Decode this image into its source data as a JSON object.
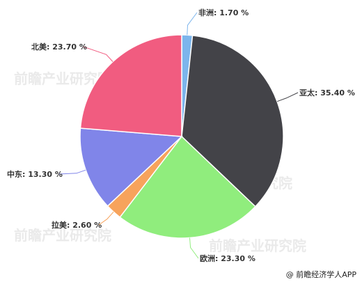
{
  "chart_data": {
    "type": "pie",
    "slices": [
      {
        "label": "非洲",
        "value": 1.7,
        "display": "非洲: 1.70 %",
        "color": "#7cb5ec"
      },
      {
        "label": "亚太",
        "value": 35.4,
        "display": "亚太: 35.40 %",
        "color": "#434348"
      },
      {
        "label": "欧洲",
        "value": 23.3,
        "display": "欧洲: 23.30 %",
        "color": "#90ed7d"
      },
      {
        "label": "拉美",
        "value": 2.6,
        "display": "拉美: 2.60 %",
        "color": "#f7a35c"
      },
      {
        "label": "中东",
        "value": 13.3,
        "display": "中东: 13.30 %",
        "color": "#8085e9"
      },
      {
        "label": "北美",
        "value": 23.7,
        "display": "北美: 23.70 %",
        "color": "#f15c80"
      }
    ],
    "legend": "none"
  },
  "watermark": {
    "text": "前瞻产业研究院"
  },
  "credit": {
    "text": "@ 前瞻经济学人APP"
  }
}
